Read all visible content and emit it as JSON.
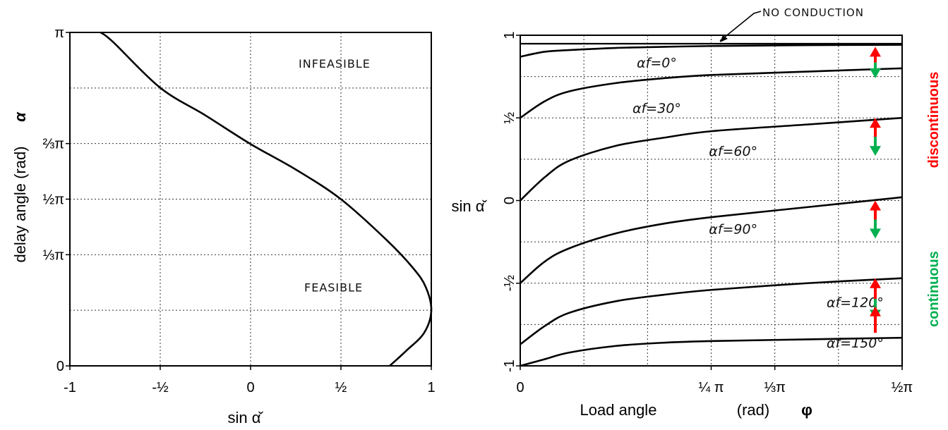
{
  "colors": {
    "discontinuous": "#ff0000",
    "continuous": "#00b050"
  },
  "chart_data": [
    {
      "type": "line",
      "xlabel": "sin α̌",
      "ylabel_text": "delay angle  (rad)",
      "ylabel_symbol": "α",
      "xlim": [
        -1,
        1
      ],
      "ylim": [
        0,
        3.1416
      ],
      "x_ticks": [
        {
          "value": -1,
          "label": "-1"
        },
        {
          "value": -0.5,
          "label": "-½"
        },
        {
          "value": 0,
          "label": "0"
        },
        {
          "value": 0.5,
          "label": "½"
        },
        {
          "value": 1,
          "label": "1"
        }
      ],
      "y_ticks": [
        {
          "value": 0,
          "label": "0"
        },
        {
          "value": 1.0472,
          "label": "⅓π"
        },
        {
          "value": 1.5708,
          "label": "½π"
        },
        {
          "value": 2.0944,
          "label": "⅔π"
        },
        {
          "value": 3.1416,
          "label": "π"
        }
      ],
      "annotations": [
        {
          "text": "INFEASIBLE",
          "x": 0.5,
          "y": 2.85
        },
        {
          "text": "FEASIBLE",
          "x": 0.5,
          "y": 0.74
        }
      ],
      "series": [
        {
          "x": [
            -0.83,
            -0.76,
            -0.5,
            -0.25,
            0.0,
            0.25,
            0.5,
            0.75,
            0.9,
            0.97,
            1.0,
            0.96,
            0.86,
            0.77
          ],
          "y": [
            3.1416,
            3.05,
            2.62,
            2.36,
            2.09,
            1.85,
            1.57,
            1.19,
            0.92,
            0.74,
            0.52,
            0.31,
            0.14,
            0.0
          ]
        }
      ],
      "grid": true
    },
    {
      "type": "line",
      "xlabel": "Load angle",
      "xlabel_unit": "(rad)",
      "xlabel_symbol": "φ",
      "ylabel": "sin α̌",
      "xlim": [
        0,
        1.5708
      ],
      "ylim": [
        -1,
        1
      ],
      "x_ticks": [
        {
          "value": 0,
          "label": "0"
        },
        {
          "value": 0.7854,
          "label": "¼ π"
        },
        {
          "value": 1.0472,
          "label": "⅓π"
        },
        {
          "value": 1.5708,
          "label": "½π"
        }
      ],
      "y_ticks": [
        {
          "value": 1,
          "label": "1"
        },
        {
          "value": 0.5,
          "label": "½"
        },
        {
          "value": 0,
          "label": "0"
        },
        {
          "value": -0.5,
          "label": "-½"
        },
        {
          "value": -1,
          "label": "-1"
        }
      ],
      "series": [
        {
          "name": "αf=0°",
          "x": [
            0,
            0.1,
            0.2,
            0.39,
            0.59,
            0.79,
            1.18,
            1.57
          ],
          "y": [
            0.87,
            0.9,
            0.91,
            0.923,
            0.93,
            0.935,
            0.94,
            0.942
          ]
        },
        {
          "name": "αf=30°",
          "x": [
            0,
            0.1,
            0.2,
            0.39,
            0.59,
            0.79,
            1.18,
            1.57
          ],
          "y": [
            0.5,
            0.6,
            0.66,
            0.71,
            0.74,
            0.76,
            0.78,
            0.8
          ]
        },
        {
          "name": "αf=60°",
          "x": [
            0,
            0.1,
            0.2,
            0.39,
            0.59,
            0.79,
            1.18,
            1.57
          ],
          "y": [
            0.0,
            0.14,
            0.24,
            0.33,
            0.38,
            0.42,
            0.46,
            0.5
          ]
        },
        {
          "name": "αf=90°",
          "x": [
            0,
            0.1,
            0.2,
            0.39,
            0.59,
            0.79,
            1.18,
            1.57
          ],
          "y": [
            -0.5,
            -0.37,
            -0.29,
            -0.2,
            -0.14,
            -0.1,
            -0.04,
            0.02
          ]
        },
        {
          "name": "αf=120°",
          "x": [
            0,
            0.1,
            0.2,
            0.39,
            0.59,
            0.79,
            1.18,
            1.57
          ],
          "y": [
            -0.87,
            -0.76,
            -0.68,
            -0.61,
            -0.57,
            -0.54,
            -0.5,
            -0.47
          ]
        },
        {
          "name": "αf=150°",
          "x": [
            0,
            0.1,
            0.2,
            0.39,
            0.59,
            0.79,
            1.18,
            1.57
          ],
          "y": [
            -1.0,
            -0.96,
            -0.92,
            -0.88,
            -0.86,
            -0.85,
            -0.84,
            -0.83
          ]
        }
      ],
      "series_labels": [
        {
          "text": "αf=0°",
          "x": 0.93,
          "y": 0.835
        },
        {
          "text": "αf=30°",
          "x": 0.93,
          "y": 0.56
        },
        {
          "text": "αf=60°",
          "x": 1.45,
          "y": 0.3
        },
        {
          "text": "αf=90°",
          "x": 1.45,
          "y": -0.17
        },
        {
          "text": "αf=120°",
          "x": 2.28,
          "y": -0.615
        },
        {
          "text": "αf=150°",
          "x": 2.28,
          "y": -0.86
        }
      ],
      "annotations": [
        {
          "text": "NO CONDUCTION"
        }
      ],
      "region_labels": [
        {
          "text": "discontinuous"
        },
        {
          "text": "continuous"
        }
      ],
      "grid": true
    }
  ]
}
